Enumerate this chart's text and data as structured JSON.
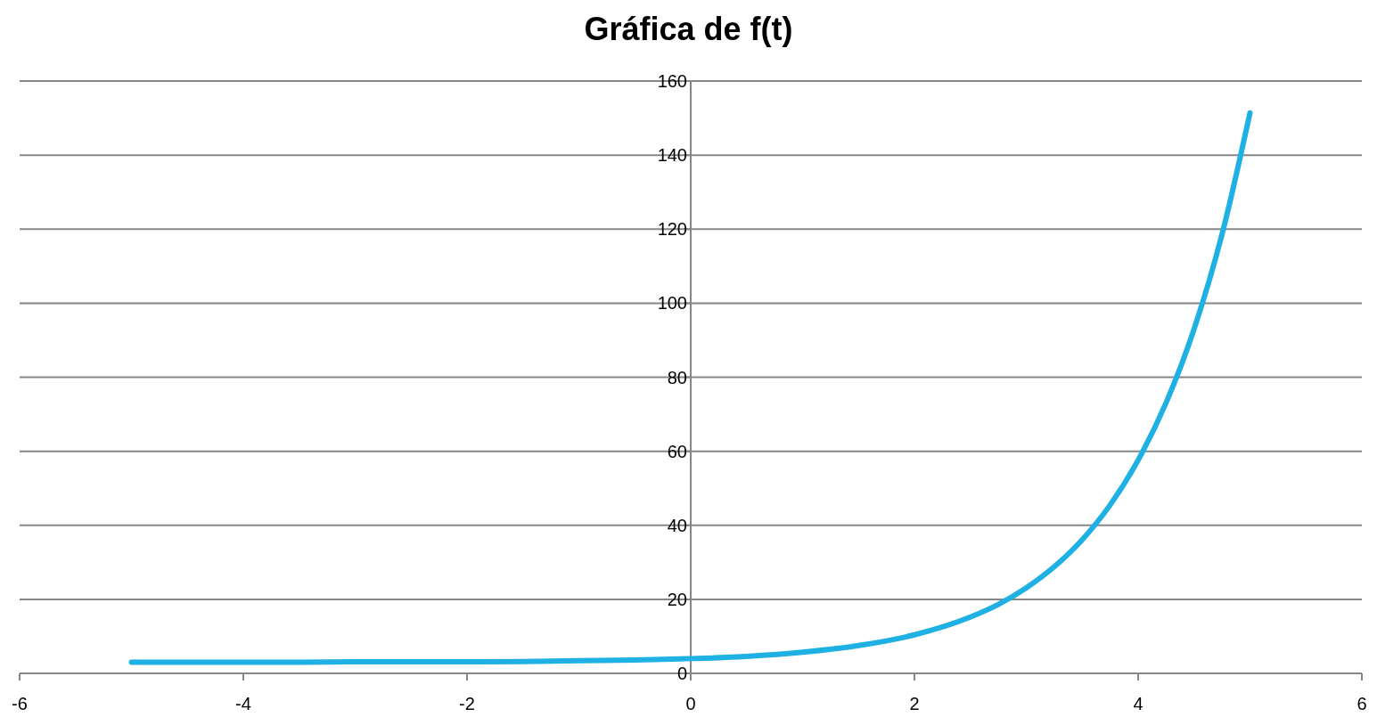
{
  "chart_data": {
    "type": "line",
    "title": "Gráfica de f(t)",
    "x": [
      -5,
      -4.5,
      -4,
      -3.5,
      -3,
      -2.5,
      -2,
      -1.5,
      -1,
      -0.5,
      0,
      0.5,
      1,
      1.5,
      2,
      2.5,
      2.75,
      3,
      3.25,
      3.5,
      3.75,
      4,
      4.25,
      4.5,
      4.75,
      5
    ],
    "series": [
      {
        "color": "#1fb0e4",
        "values": [
          3,
          3,
          3,
          3,
          3.1,
          3.1,
          3.1,
          3.2,
          3.4,
          3.6,
          4,
          4.6,
          5.7,
          7.5,
          10.4,
          15.2,
          18.6,
          23.1,
          28.8,
          36.1,
          45.5,
          57.6,
          73.1,
          93,
          118.6,
          151.4
        ]
      }
    ],
    "xlim": [
      -6,
      6
    ],
    "xticks": [
      -6,
      -4,
      -2,
      0,
      2,
      4,
      6
    ],
    "ylim": [
      0,
      160
    ],
    "yticks": [
      0,
      20,
      40,
      60,
      80,
      100,
      120,
      140,
      160
    ],
    "grid": "y",
    "marker": "none",
    "line_style": "solid"
  }
}
